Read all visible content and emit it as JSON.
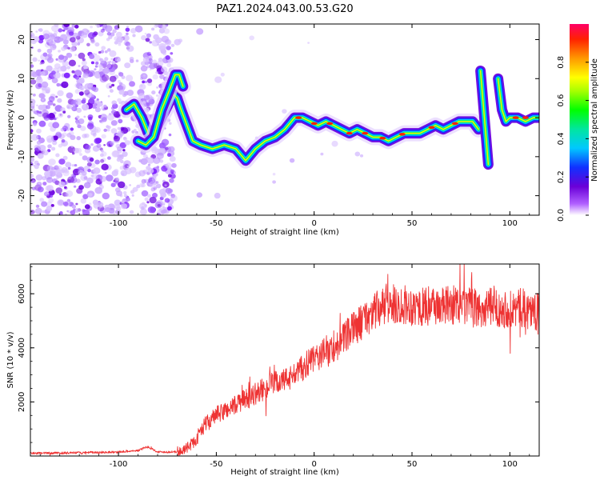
{
  "title": "PAZ1.2024.043.00.53.G20",
  "chart_data": [
    {
      "type": "heatmap",
      "xlabel": "Height of straight line (km)",
      "ylabel": "Frequency (Hz)",
      "xlim": [
        -145,
        115
      ],
      "ylim": [
        -25,
        24
      ],
      "x_ticks": [
        "-100",
        "-50",
        "0",
        "50",
        "100"
      ],
      "y_ticks": [
        "-20",
        "-10",
        "0",
        "10",
        "20"
      ],
      "colorbar": {
        "label": "Normalized spectral amplitude",
        "range": [
          0,
          1
        ],
        "ticks": [
          "0.0",
          "0.2",
          "0.4",
          "0.6",
          "0.8"
        ]
      },
      "ridge": {
        "x": [
          -96,
          -92,
          -88,
          -84,
          -80,
          -76,
          -72,
          -70,
          -68,
          -65,
          -62,
          -58,
          -52,
          -46,
          -40,
          -35,
          -30,
          -25,
          -20,
          -15,
          -10,
          -6,
          -2,
          2,
          6,
          10,
          14,
          18,
          22,
          26,
          30,
          34,
          38,
          42,
          46,
          50,
          54,
          58,
          62,
          66,
          70,
          74,
          78,
          81,
          84
        ],
        "y": [
          2,
          3.5,
          0,
          -5,
          -2,
          2,
          6,
          5,
          2,
          -2,
          -6,
          -7,
          -8,
          -7,
          -8,
          -11,
          -8,
          -6,
          -5,
          -3,
          0,
          0,
          -1,
          -2,
          -1,
          -2,
          -3,
          -4,
          -3,
          -4,
          -5,
          -5,
          -6,
          -5,
          -4,
          -4,
          -4,
          -3,
          -2,
          -3,
          -2,
          -1,
          -1,
          -1,
          -3
        ]
      },
      "ridge_upper": {
        "x": [
          -90,
          -86,
          -82,
          -78,
          -74,
          -71,
          -69,
          -67
        ],
        "y": [
          -6,
          -7,
          -5,
          2,
          7,
          11,
          11,
          8
        ]
      },
      "fringe_segments": [
        {
          "x": [
            85,
            87,
            89
          ],
          "y": [
            12,
            0,
            -12
          ]
        },
        {
          "x": [
            94,
            96,
            98,
            100,
            104,
            108,
            112,
            115
          ],
          "y": [
            10,
            2,
            -1,
            0,
            0,
            -1,
            0,
            0
          ]
        }
      ]
    },
    {
      "type": "line",
      "xlabel": "Height of straight line (km)",
      "ylabel": "SNR (10 * v/v)",
      "xlim": [
        -145,
        115
      ],
      "ylim": [
        0,
        7100
      ],
      "x_ticks": [
        "-100",
        "-50",
        "0",
        "50",
        "100"
      ],
      "y_ticks": [
        "2000",
        "4000",
        "6000"
      ],
      "color": "#ee3333",
      "series": [
        {
          "x": [
            -145,
            -120,
            -100,
            -90,
            -85,
            -80,
            -70,
            -65,
            -60,
            -58,
            -55,
            -50,
            -45,
            -40,
            -35,
            -30,
            -25,
            -20,
            -15,
            -10,
            -5,
            0,
            5,
            10,
            15,
            20,
            25,
            30,
            35,
            40,
            45,
            50,
            55,
            60,
            65,
            70,
            75,
            80,
            85,
            90,
            95,
            100,
            105,
            110,
            115
          ],
          "y": [
            100,
            120,
            150,
            200,
            350,
            150,
            150,
            300,
            600,
            1000,
            1200,
            1500,
            1700,
            1900,
            2100,
            2300,
            2500,
            2700,
            2800,
            3000,
            3300,
            3600,
            3800,
            4000,
            4300,
            4700,
            5000,
            5300,
            5500,
            5600,
            5600,
            5550,
            5500,
            5600,
            5500,
            5600,
            5500,
            5500,
            5400,
            5500,
            5500,
            5400,
            5500,
            5400,
            5300
          ]
        }
      ]
    }
  ]
}
